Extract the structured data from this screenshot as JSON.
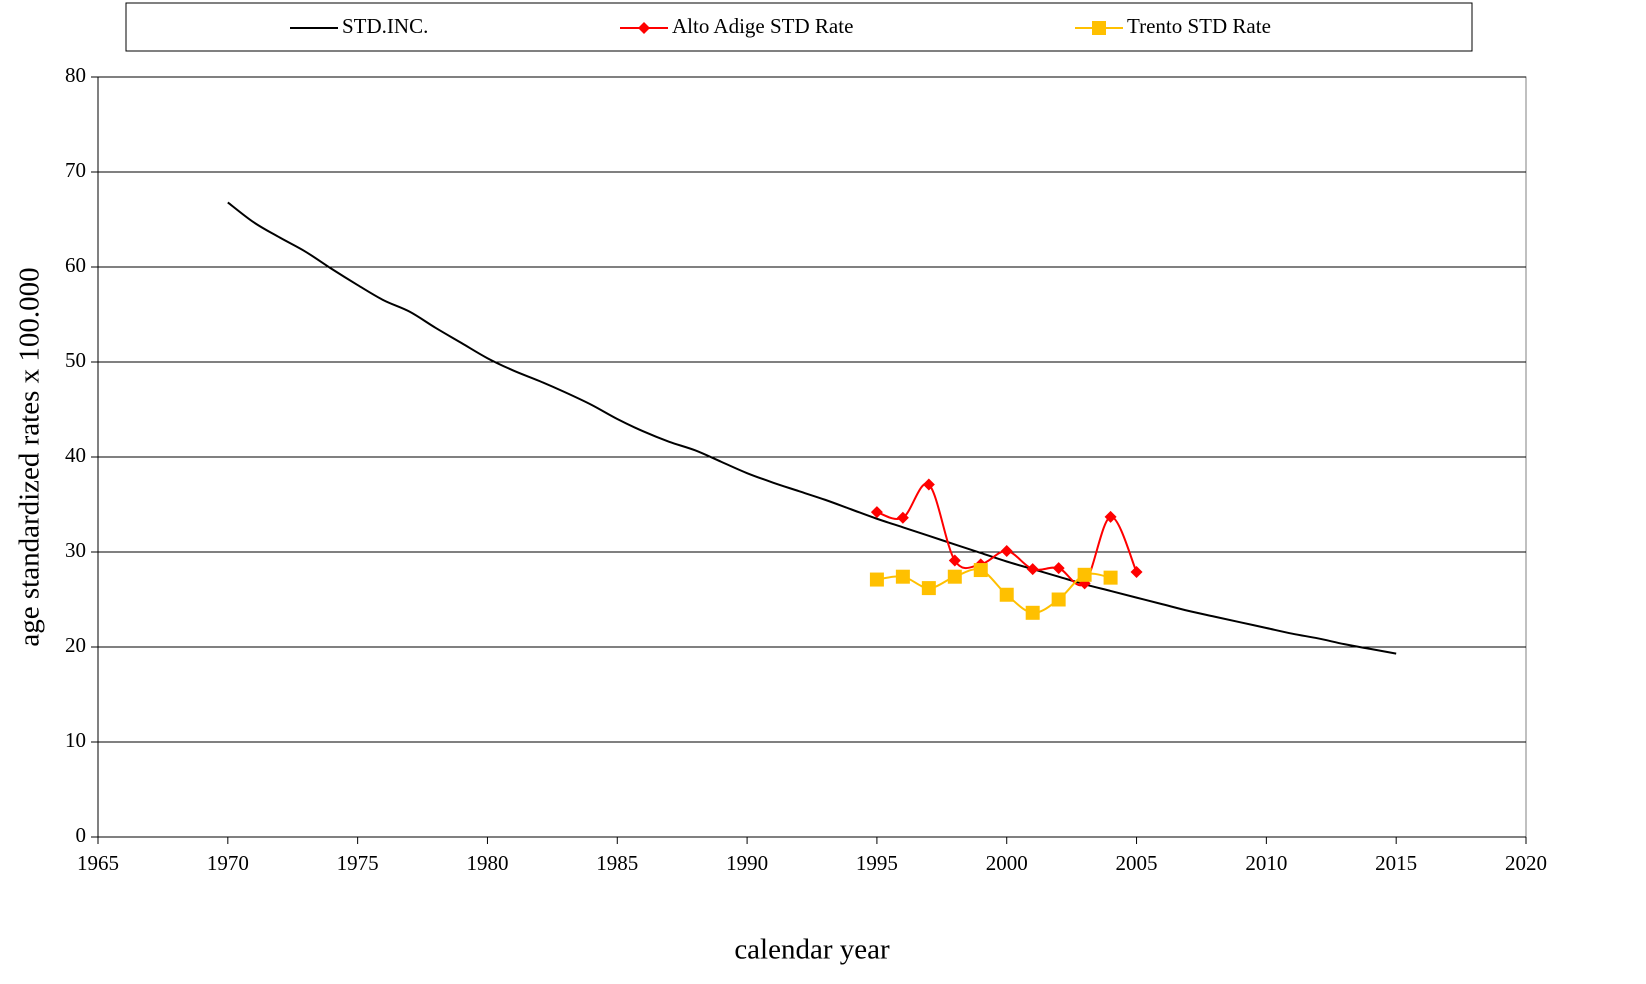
{
  "chart_data": {
    "type": "line",
    "xlabel": "calendar year",
    "ylabel": "age standardized rates x 100.000",
    "xlim": [
      1965,
      2020
    ],
    "xticks": [
      1965,
      1970,
      1975,
      1980,
      1985,
      1990,
      1995,
      2000,
      2005,
      2010,
      2015,
      2020
    ],
    "ylim": [
      0,
      80
    ],
    "yticks": [
      0,
      10,
      20,
      30,
      40,
      50,
      60,
      70,
      80
    ],
    "grid": true,
    "smooth": true,
    "legend": "top",
    "series": [
      {
        "name": "STD.INC.",
        "color": "#000000",
        "marker": "none",
        "x": [
          1970,
          1971,
          1972,
          1973,
          1974,
          1975,
          1976,
          1977,
          1978,
          1979,
          1980,
          1981,
          1982,
          1983,
          1984,
          1985,
          1986,
          1987,
          1988,
          1989,
          1990,
          1991,
          1992,
          1993,
          1994,
          1995,
          1996,
          1997,
          1998,
          1999,
          2000,
          2001,
          2002,
          2003,
          2004,
          2005,
          2006,
          2007,
          2008,
          2009,
          2010,
          2011,
          2012,
          2013,
          2014,
          2015
        ],
        "values": [
          66.8,
          64.7,
          63.1,
          61.6,
          59.8,
          58.1,
          56.5,
          55.3,
          53.6,
          52.0,
          50.4,
          49.1,
          48.0,
          46.8,
          45.5,
          44.0,
          42.7,
          41.6,
          40.7,
          39.5,
          38.3,
          37.3,
          36.4,
          35.5,
          34.5,
          33.5,
          32.6,
          31.7,
          30.8,
          29.9,
          29.0,
          28.2,
          27.4,
          26.6,
          25.9,
          25.2,
          24.5,
          23.8,
          23.2,
          22.6,
          22.0,
          21.4,
          20.9,
          20.3,
          19.8,
          19.3
        ]
      },
      {
        "name": "Alto Adige STD Rate",
        "color": "#ff0000",
        "marker": "diamond",
        "x": [
          1995,
          1996,
          1997,
          1998,
          1999,
          2000,
          2001,
          2002,
          2003,
          2004,
          2005
        ],
        "values": [
          34.2,
          33.6,
          37.1,
          29.1,
          28.7,
          30.1,
          28.2,
          28.3,
          26.7,
          33.7,
          27.9
        ]
      },
      {
        "name": "Trento STD Rate",
        "color": "#ffc000",
        "marker": "square",
        "x": [
          1995,
          1996,
          1997,
          1998,
          1999,
          2000,
          2001,
          2002,
          2003,
          2004
        ],
        "values": [
          27.1,
          27.4,
          26.2,
          27.4,
          28.1,
          25.5,
          23.6,
          25.0,
          27.6,
          27.3
        ]
      }
    ]
  }
}
